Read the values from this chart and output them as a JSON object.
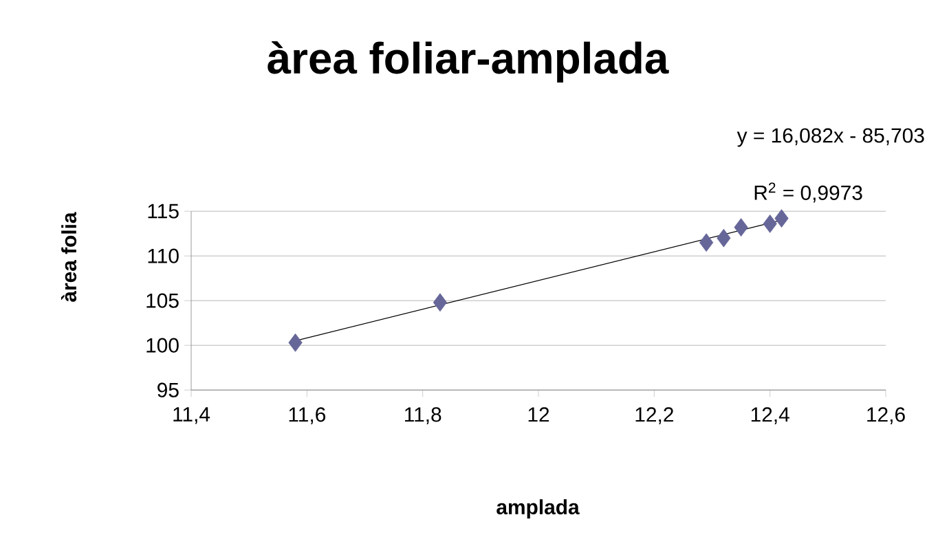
{
  "chart_data": {
    "type": "scatter",
    "title": "àrea foliar-amplada",
    "xlabel": "amplada",
    "ylabel": "àrea folia",
    "annotations": [
      "y = 16,082x - 85,703",
      "R$^{2}$ = 0,9973"
    ],
    "series": [
      {
        "color": "#666699",
        "marker": "diamond",
        "x": [
          11.58,
          11.83,
          12.29,
          12.32,
          12.35,
          12.4,
          12.42
        ],
        "values": [
          100.3,
          104.8,
          111.5,
          112.0,
          113.2,
          113.6,
          114.2
        ]
      },
      {
        "type": "line",
        "color": "#000000",
        "marker": "none",
        "line_style": "solid",
        "x": [
          11.58,
          12.42
        ],
        "values": [
          100.5,
          114.0
        ]
      }
    ],
    "xlim": [
      11.4,
      12.6
    ],
    "ylim": [
      95,
      115
    ],
    "xticks": [
      {
        "value": 11.4,
        "label": "11,4"
      },
      {
        "value": 11.6,
        "label": "11,6"
      },
      {
        "value": 11.8,
        "label": "11,8"
      },
      {
        "value": 12,
        "label": "12"
      },
      {
        "value": 12.2,
        "label": "12,2"
      },
      {
        "value": 12.4,
        "label": "12,4"
      },
      {
        "value": 12.6,
        "label": "12,6"
      }
    ],
    "yticks": [
      95,
      100,
      105,
      110,
      115
    ],
    "grid": "y"
  }
}
